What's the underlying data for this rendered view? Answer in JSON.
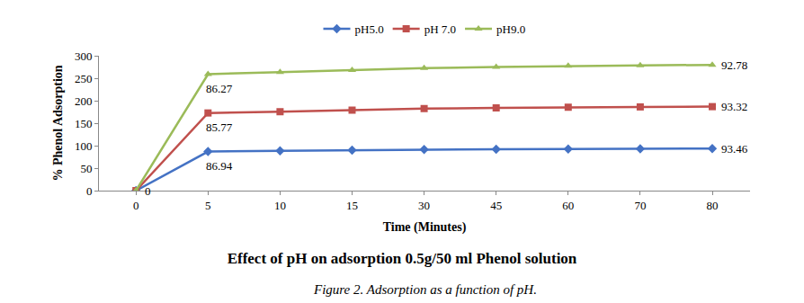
{
  "chart_data": {
    "type": "line",
    "title": "Effect of pH on adsorption 0.5g/50 ml Phenol solution",
    "subtitle": "Figure 2. Adsorption as a function of pH.",
    "x_label": "Time (Minutes)",
    "y_label": "% Phenol Adsorption",
    "categories": [
      "0",
      "5",
      "10",
      "15",
      "30",
      "45",
      "60",
      "70",
      "80"
    ],
    "stacked": true,
    "series": [
      {
        "name": "pH5.0",
        "color": "#4472c4",
        "marker": "diamond",
        "values": [
          0,
          86.94,
          88.5,
          90,
          91.5,
          92,
          92.5,
          93,
          93.46
        ],
        "value_labels": [
          "0",
          "86.94",
          null,
          null,
          null,
          null,
          null,
          null,
          "93.46"
        ]
      },
      {
        "name": "pH 7.0",
        "color": "#c0504d",
        "marker": "square",
        "values": [
          0,
          85.77,
          87,
          89,
          91,
          92,
          93,
          93.2,
          93.32
        ],
        "value_labels": [
          null,
          "85.77",
          null,
          null,
          null,
          null,
          null,
          null,
          "93.32"
        ]
      },
      {
        "name": "pH9.0",
        "color": "#9bbb59",
        "marker": "triangle-up",
        "values": [
          0,
          86.27,
          88,
          89,
          90,
          91,
          92,
          92.5,
          92.78
        ],
        "value_labels": [
          null,
          "86.27",
          null,
          null,
          null,
          null,
          null,
          null,
          "92.78"
        ]
      }
    ],
    "ylim": [
      0,
      300
    ],
    "yticks": [
      0,
      50,
      100,
      150,
      200,
      250,
      300
    ],
    "grid": false,
    "legend": "top"
  }
}
